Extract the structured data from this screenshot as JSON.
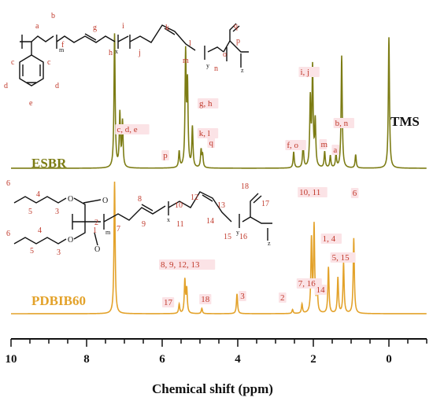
{
  "chart_data": {
    "type": "line",
    "xlabel": "Chemical shift (ppm)",
    "xlim": [
      10,
      -1
    ],
    "xaxis_reversed": true,
    "xticks": [
      10,
      8,
      6,
      4,
      2,
      0
    ],
    "tick_labels": [
      "10",
      "8",
      "6",
      "4",
      "2",
      "0"
    ],
    "reference_label": "TMS",
    "reference_shift": 0,
    "series": [
      {
        "name": "ESBR",
        "color": "#7c7c14",
        "peaks": [
          {
            "shift": 7.26,
            "height": 1.0
          },
          {
            "shift": 7.12,
            "height": 0.4
          },
          {
            "shift": 7.05,
            "height": 0.34
          },
          {
            "shift": 5.55,
            "height": 0.12
          },
          {
            "shift": 5.38,
            "height": 0.84
          },
          {
            "shift": 5.33,
            "height": 0.6
          },
          {
            "shift": 5.2,
            "height": 0.3
          },
          {
            "shift": 4.97,
            "height": 0.13
          },
          {
            "shift": 4.93,
            "height": 0.09
          },
          {
            "shift": 2.52,
            "height": 0.12
          },
          {
            "shift": 2.27,
            "height": 0.18
          },
          {
            "shift": 2.08,
            "height": 0.5
          },
          {
            "shift": 2.02,
            "height": 0.73
          },
          {
            "shift": 1.95,
            "height": 0.34
          },
          {
            "shift": 1.7,
            "height": 0.12
          },
          {
            "shift": 1.55,
            "height": 0.09
          },
          {
            "shift": 1.4,
            "height": 0.1
          },
          {
            "shift": 1.25,
            "height": 0.84
          },
          {
            "shift": 0.88,
            "height": 0.1
          },
          {
            "shift": 0.0,
            "height": 0.98
          }
        ],
        "annotations": [
          {
            "text": "c, d, e",
            "shift": 6.7
          },
          {
            "text": "g, h",
            "shift": 5.0
          },
          {
            "text": "k, l",
            "shift": 4.9
          },
          {
            "text": "q",
            "shift": 4.72
          },
          {
            "text": "p",
            "shift": 5.85
          },
          {
            "text": "i, j",
            "shift": 2.22
          },
          {
            "text": "f, o",
            "shift": 2.45
          },
          {
            "text": "m",
            "shift": 1.78
          },
          {
            "text": "a",
            "shift": 1.45
          },
          {
            "text": "b, n",
            "shift": 1.3
          }
        ]
      },
      {
        "name": "PDBIB60",
        "color": "#e3a22a",
        "peaks": [
          {
            "shift": 7.26,
            "height": 1.0
          },
          {
            "shift": 5.55,
            "height": 0.07
          },
          {
            "shift": 5.4,
            "height": 0.25
          },
          {
            "shift": 5.35,
            "height": 0.18
          },
          {
            "shift": 4.95,
            "height": 0.04
          },
          {
            "shift": 4.02,
            "height": 0.15
          },
          {
            "shift": 2.55,
            "height": 0.03
          },
          {
            "shift": 2.3,
            "height": 0.07
          },
          {
            "shift": 2.05,
            "height": 0.55
          },
          {
            "shift": 1.98,
            "height": 0.65
          },
          {
            "shift": 1.9,
            "height": 0.2
          },
          {
            "shift": 1.6,
            "height": 0.35
          },
          {
            "shift": 1.35,
            "height": 0.27
          },
          {
            "shift": 1.2,
            "height": 0.38
          },
          {
            "shift": 0.93,
            "height": 0.57
          }
        ],
        "annotations": [
          {
            "text": "17",
            "shift": 5.75
          },
          {
            "text": "8, 9, 12, 13",
            "shift": 5.75
          },
          {
            "text": "18",
            "shift": 4.85
          },
          {
            "text": "3",
            "shift": 3.85
          },
          {
            "text": "2",
            "shift": 2.75
          },
          {
            "text": "7, 16",
            "shift": 2.15
          },
          {
            "text": "10, 11",
            "shift": 2.08
          },
          {
            "text": "14",
            "shift": 1.8
          },
          {
            "text": "1, 4",
            "shift": 1.55
          },
          {
            "text": "5, 15",
            "shift": 1.3
          },
          {
            "text": "6",
            "shift": 0.9
          }
        ]
      }
    ]
  },
  "structures": {
    "esbr": {
      "atoms": [
        "a",
        "b",
        "c",
        "c",
        "d",
        "d",
        "e",
        "f",
        "g",
        "h",
        "i",
        "j",
        "k",
        "l",
        "m",
        "n",
        "o",
        "p",
        "q"
      ],
      "subscripts": [
        "m",
        "x",
        "y",
        "z"
      ]
    },
    "pdbib60": {
      "atoms": [
        "6",
        "5",
        "4",
        "3",
        "6",
        "5",
        "4",
        "3",
        "1",
        "2",
        "7",
        "8",
        "9",
        "10",
        "11",
        "12",
        "13",
        "14",
        "15",
        "16",
        "17",
        "18"
      ],
      "subscripts": [
        "m",
        "x",
        "y",
        "z"
      ],
      "heteroatoms": [
        "O",
        "O",
        "O",
        "O"
      ]
    }
  }
}
